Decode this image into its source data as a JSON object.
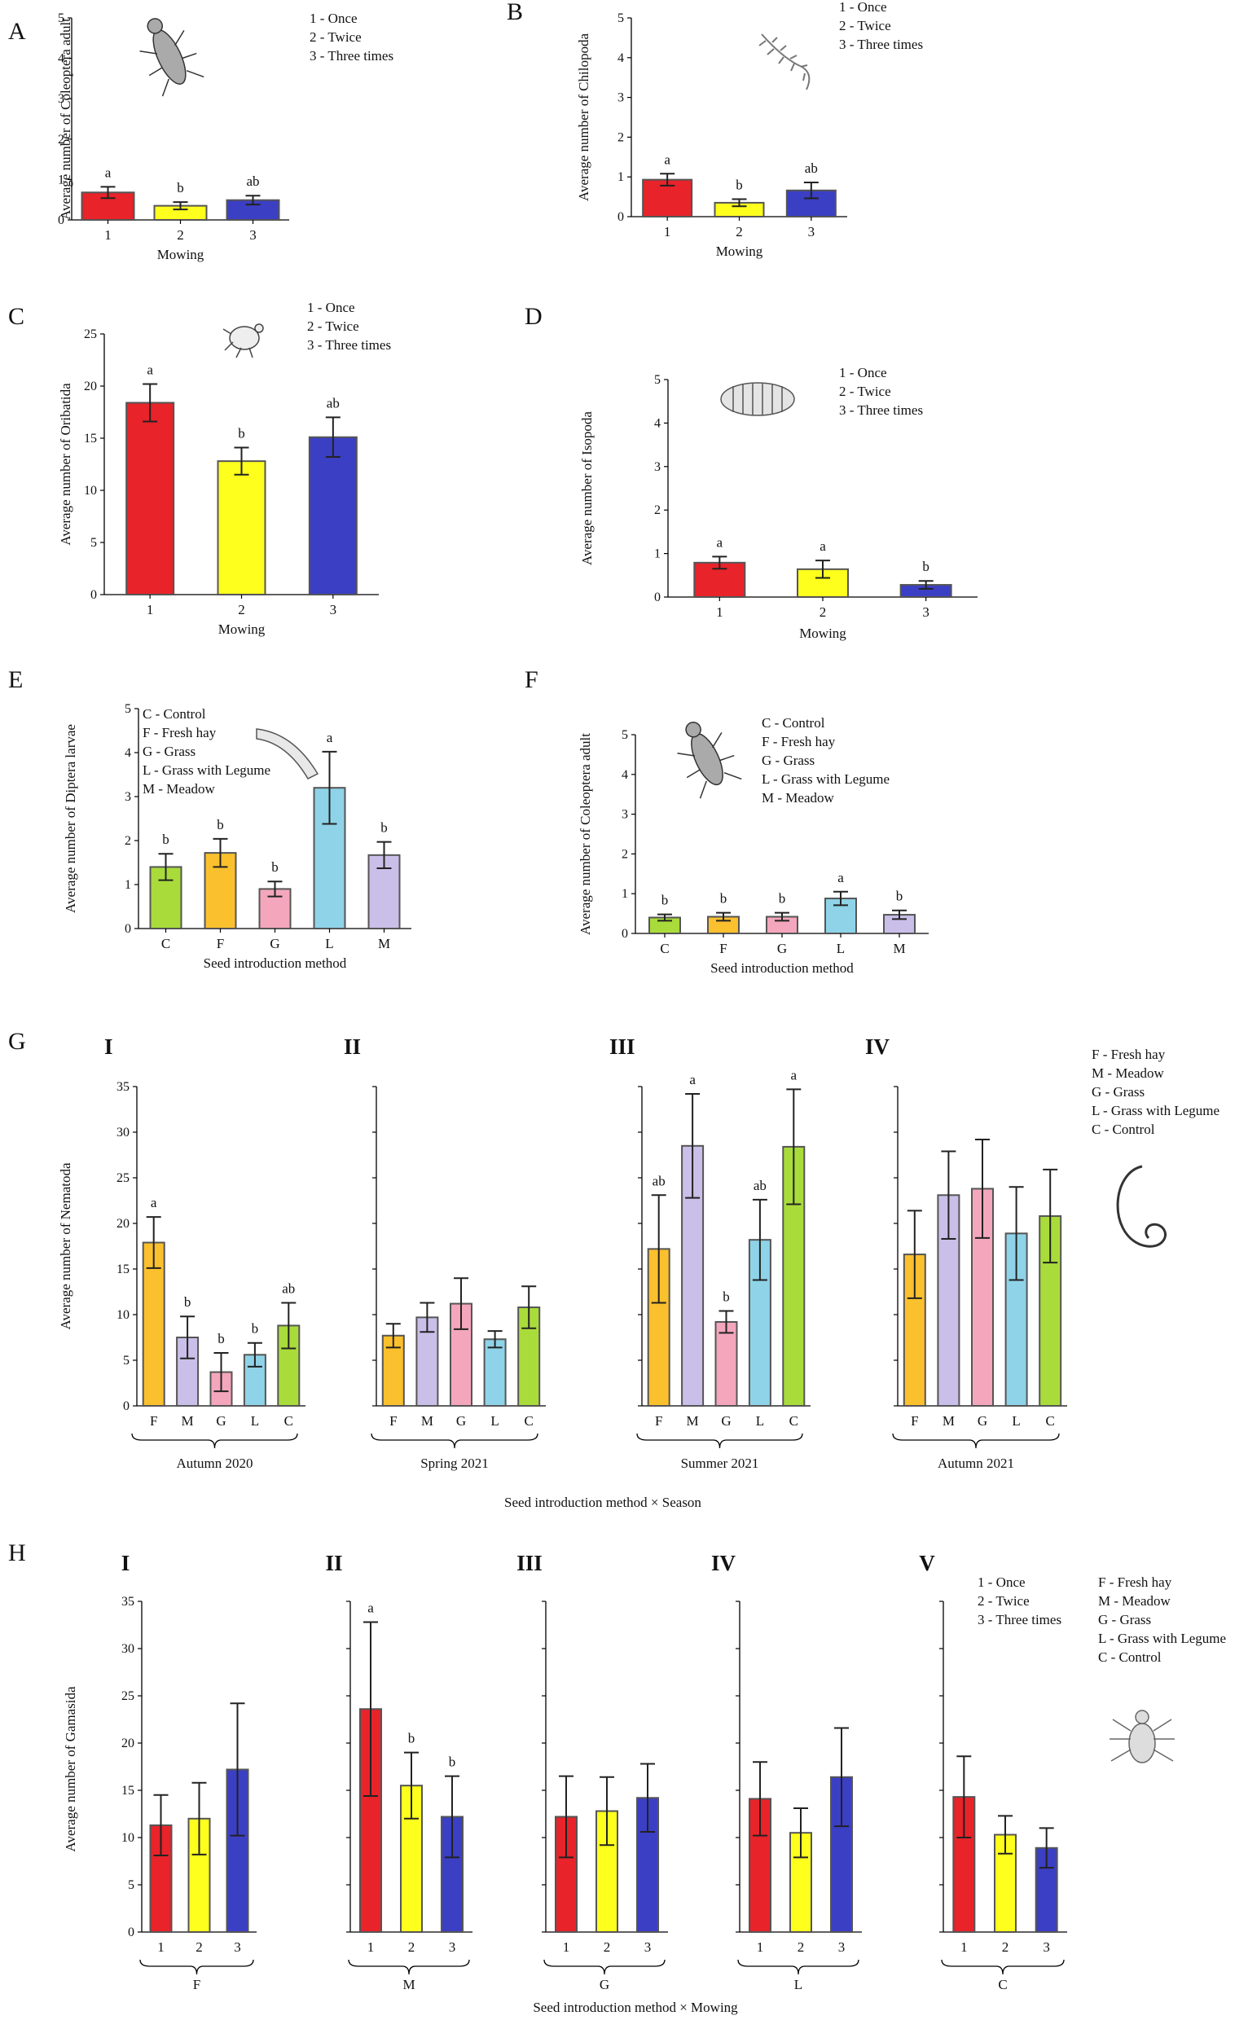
{
  "colors": {
    "mow1": "#e8232a",
    "mow2": "#ffff1e",
    "mow3": "#3b3fc4",
    "C": "#a9dc3b",
    "F": "#fbc02d",
    "G": "#f4a7bc",
    "L": "#8fd3e8",
    "M": "#c9bfe8"
  },
  "chart_data": [
    {
      "panel": "A",
      "type": "bar",
      "ylabel": "Average number of Coleoptera adult",
      "xlabel": "Mowing",
      "ylim": [
        0,
        5
      ],
      "yticks": [
        0,
        1,
        2,
        3,
        4,
        5
      ],
      "categories": [
        "1",
        "2",
        "3"
      ],
      "values": [
        0.68,
        0.35,
        0.49
      ],
      "errors": [
        0.14,
        0.09,
        0.11
      ],
      "letters": [
        "a",
        "b",
        "ab"
      ],
      "colors": [
        "#e8232a",
        "#ffff1e",
        "#3b3fc4"
      ],
      "legend": [
        "1 - Once",
        "2 - Twice",
        "3 - Three times"
      ],
      "icon": "beetle"
    },
    {
      "panel": "B",
      "type": "bar",
      "ylabel": "Average number of Chilopoda",
      "xlabel": "Mowing",
      "ylim": [
        0,
        5
      ],
      "yticks": [
        0,
        1,
        2,
        3,
        4,
        5
      ],
      "categories": [
        "1",
        "2",
        "3"
      ],
      "values": [
        0.93,
        0.35,
        0.66
      ],
      "errors": [
        0.15,
        0.09,
        0.2
      ],
      "letters": [
        "a",
        "b",
        "ab"
      ],
      "colors": [
        "#e8232a",
        "#ffff1e",
        "#3b3fc4"
      ],
      "legend": [
        "1 - Once",
        "2 - Twice",
        "3 - Three times"
      ],
      "icon": "centipede"
    },
    {
      "panel": "C",
      "type": "bar",
      "ylabel": "Average number of Oribatida",
      "xlabel": "Mowing",
      "ylim": [
        0,
        25
      ],
      "yticks": [
        0,
        5,
        10,
        15,
        20,
        25
      ],
      "categories": [
        "1",
        "2",
        "3"
      ],
      "values": [
        18.4,
        12.8,
        15.1
      ],
      "errors": [
        1.8,
        1.3,
        1.9
      ],
      "letters": [
        "a",
        "b",
        "ab"
      ],
      "colors": [
        "#e8232a",
        "#ffff1e",
        "#3b3fc4"
      ],
      "legend": [
        "1 - Once",
        "2 - Twice",
        "3 - Three times"
      ],
      "icon": "mite"
    },
    {
      "panel": "D",
      "type": "bar",
      "ylabel": "Average number of Isopoda",
      "xlabel": "Mowing",
      "ylim": [
        0,
        5
      ],
      "yticks": [
        0,
        1,
        2,
        3,
        4,
        5
      ],
      "categories": [
        "1",
        "2",
        "3"
      ],
      "values": [
        0.79,
        0.64,
        0.28
      ],
      "errors": [
        0.14,
        0.2,
        0.09
      ],
      "letters": [
        "a",
        "a",
        "b"
      ],
      "colors": [
        "#e8232a",
        "#ffff1e",
        "#3b3fc4"
      ],
      "legend": [
        "1 - Once",
        "2 - Twice",
        "3 - Three times"
      ],
      "icon": "woodlouse"
    },
    {
      "panel": "E",
      "type": "bar",
      "ylabel": "Average number of Diptera larvae",
      "xlabel": "Seed introduction method",
      "ylim": [
        0,
        5
      ],
      "yticks": [
        0,
        1,
        2,
        3,
        4,
        5
      ],
      "categories": [
        "C",
        "F",
        "G",
        "L",
        "M"
      ],
      "values": [
        1.4,
        1.72,
        0.9,
        3.2,
        1.67
      ],
      "errors": [
        0.3,
        0.32,
        0.17,
        0.82,
        0.3
      ],
      "letters": [
        "b",
        "b",
        "b",
        "a",
        "b"
      ],
      "colors": [
        "#a9dc3b",
        "#fbc02d",
        "#f4a7bc",
        "#8fd3e8",
        "#c9bfe8"
      ],
      "legend": [
        "C - Control",
        "F - Fresh hay",
        "G - Grass",
        "L - Grass with Legume",
        "M - Meadow"
      ],
      "icon": "larva"
    },
    {
      "panel": "F",
      "type": "bar",
      "ylabel": "Average number of Coleoptera adult",
      "xlabel": "Seed introduction method",
      "ylim": [
        0,
        5
      ],
      "yticks": [
        0,
        1,
        2,
        3,
        4,
        5
      ],
      "categories": [
        "C",
        "F",
        "G",
        "L",
        "M"
      ],
      "values": [
        0.4,
        0.42,
        0.42,
        0.88,
        0.47
      ],
      "errors": [
        0.08,
        0.1,
        0.1,
        0.17,
        0.11
      ],
      "letters": [
        "b",
        "b",
        "b",
        "a",
        "b"
      ],
      "colors": [
        "#a9dc3b",
        "#fbc02d",
        "#f4a7bc",
        "#8fd3e8",
        "#c9bfe8"
      ],
      "legend": [
        "C - Control",
        "F - Fresh hay",
        "G - Grass",
        "L - Grass with Legume",
        "M - Meadow"
      ],
      "icon": "beetle"
    },
    {
      "panel": "G",
      "type": "bar",
      "ylabel": "Average number of Nematoda",
      "xlabel": "Seed introduction method × Season",
      "ylim": [
        0,
        35
      ],
      "yticks": [
        0,
        5,
        10,
        15,
        20,
        25,
        30,
        35
      ],
      "legend": [
        "F - Fresh hay",
        "M - Meadow",
        "G - Grass",
        "L - Grass with Legume",
        "C - Control"
      ],
      "icon": "nematode",
      "groups": [
        {
          "roman": "I",
          "name": "Autumn 2020",
          "categories": [
            "F",
            "M",
            "G",
            "L",
            "C"
          ],
          "values": [
            17.9,
            7.5,
            3.7,
            5.6,
            8.8
          ],
          "errors": [
            2.8,
            2.3,
            2.1,
            1.3,
            2.5
          ],
          "letters": [
            "a",
            "b",
            "b",
            "b",
            "ab"
          ]
        },
        {
          "roman": "II",
          "name": "Spring 2021",
          "categories": [
            "F",
            "M",
            "G",
            "L",
            "C"
          ],
          "values": [
            7.7,
            9.7,
            11.2,
            7.3,
            10.8
          ],
          "errors": [
            1.3,
            1.6,
            2.8,
            0.9,
            2.3
          ],
          "letters": [
            "",
            "",
            "",
            "",
            ""
          ]
        },
        {
          "roman": "III",
          "name": "Summer 2021",
          "categories": [
            "F",
            "M",
            "G",
            "L",
            "C"
          ],
          "values": [
            17.2,
            28.5,
            9.2,
            18.2,
            28.4
          ],
          "errors": [
            5.9,
            5.7,
            1.2,
            4.4,
            6.3
          ],
          "letters": [
            "ab",
            "a",
            "b",
            "ab",
            "a"
          ]
        },
        {
          "roman": "IV",
          "name": "Autumn 2021",
          "categories": [
            "F",
            "M",
            "G",
            "L",
            "C"
          ],
          "values": [
            16.6,
            23.1,
            23.8,
            18.9,
            20.8
          ],
          "errors": [
            4.8,
            4.8,
            5.4,
            5.1,
            5.1
          ],
          "letters": [
            "",
            "",
            "",
            "",
            ""
          ]
        }
      ]
    },
    {
      "panel": "H",
      "type": "bar",
      "ylabel": "Average number of Gamasida",
      "xlabel": "Seed introduction method × Mowing",
      "ylim": [
        0,
        35
      ],
      "yticks": [
        0,
        5,
        10,
        15,
        20,
        25,
        30,
        35
      ],
      "legend_mowing": [
        "1 - Once",
        "2 - Twice",
        "3 - Three times"
      ],
      "legend_methods": [
        "F - Fresh hay",
        "M - Meadow",
        "G - Grass",
        "L - Grass with Legume",
        "C - Control"
      ],
      "icon": "mite",
      "groups": [
        {
          "roman": "I",
          "name": "F",
          "categories": [
            "1",
            "2",
            "3"
          ],
          "values": [
            11.3,
            12.0,
            17.2
          ],
          "errors": [
            3.2,
            3.8,
            7.0
          ],
          "letters": [
            "",
            "",
            ""
          ]
        },
        {
          "roman": "II",
          "name": "M",
          "categories": [
            "1",
            "2",
            "3"
          ],
          "values": [
            23.6,
            15.5,
            12.2
          ],
          "errors": [
            9.2,
            3.5,
            4.3
          ],
          "letters": [
            "a",
            "b",
            "b"
          ]
        },
        {
          "roman": "III",
          "name": "G",
          "categories": [
            "1",
            "2",
            "3"
          ],
          "values": [
            12.2,
            12.8,
            14.2
          ],
          "errors": [
            4.3,
            3.6,
            3.6
          ],
          "letters": [
            "",
            "",
            ""
          ]
        },
        {
          "roman": "IV",
          "name": "L",
          "categories": [
            "1",
            "2",
            "3"
          ],
          "values": [
            14.1,
            10.5,
            16.4
          ],
          "errors": [
            3.9,
            2.6,
            5.2
          ],
          "letters": [
            "",
            "",
            ""
          ]
        },
        {
          "roman": "V",
          "name": "C",
          "categories": [
            "1",
            "2",
            "3"
          ],
          "values": [
            14.3,
            10.3,
            8.9
          ],
          "errors": [
            4.3,
            2.0,
            2.1
          ],
          "letters": [
            "",
            "",
            ""
          ]
        }
      ]
    }
  ]
}
